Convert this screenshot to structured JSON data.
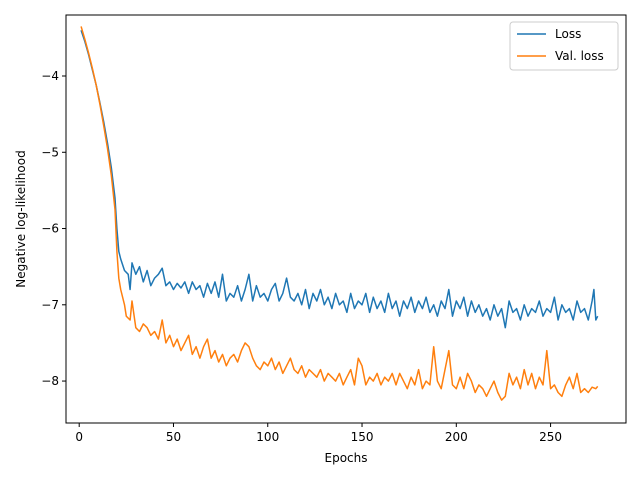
{
  "chart_data": {
    "type": "line",
    "title": "",
    "xlabel": "Epochs",
    "ylabel": "Negative log-likelihood",
    "xlim": [
      -7,
      290
    ],
    "ylim": [
      -8.55,
      -3.2
    ],
    "xticks": [
      0,
      50,
      100,
      150,
      200,
      250
    ],
    "yticks": [
      -4,
      -5,
      -6,
      -7,
      -8
    ],
    "grid": false,
    "legend_position": "top-right",
    "series": [
      {
        "name": "Loss",
        "color": "#1f77b4",
        "points": [
          [
            1,
            -3.4
          ],
          [
            3,
            -3.55
          ],
          [
            5,
            -3.72
          ],
          [
            7,
            -3.92
          ],
          [
            9,
            -4.12
          ],
          [
            11,
            -4.35
          ],
          [
            13,
            -4.6
          ],
          [
            15,
            -4.88
          ],
          [
            17,
            -5.2
          ],
          [
            19,
            -5.6
          ],
          [
            20,
            -6.0
          ],
          [
            21,
            -6.3
          ],
          [
            22,
            -6.4
          ],
          [
            24,
            -6.55
          ],
          [
            26,
            -6.6
          ],
          [
            27,
            -6.8
          ],
          [
            28,
            -6.45
          ],
          [
            30,
            -6.6
          ],
          [
            32,
            -6.5
          ],
          [
            34,
            -6.7
          ],
          [
            36,
            -6.55
          ],
          [
            38,
            -6.75
          ],
          [
            40,
            -6.65
          ],
          [
            42,
            -6.6
          ],
          [
            44,
            -6.52
          ],
          [
            46,
            -6.75
          ],
          [
            48,
            -6.7
          ],
          [
            50,
            -6.8
          ],
          [
            52,
            -6.72
          ],
          [
            54,
            -6.78
          ],
          [
            56,
            -6.7
          ],
          [
            58,
            -6.85
          ],
          [
            60,
            -6.7
          ],
          [
            62,
            -6.8
          ],
          [
            64,
            -6.75
          ],
          [
            66,
            -6.9
          ],
          [
            68,
            -6.72
          ],
          [
            70,
            -6.85
          ],
          [
            72,
            -6.7
          ],
          [
            74,
            -6.9
          ],
          [
            76,
            -6.6
          ],
          [
            78,
            -6.95
          ],
          [
            80,
            -6.85
          ],
          [
            82,
            -6.9
          ],
          [
            84,
            -6.75
          ],
          [
            86,
            -6.95
          ],
          [
            88,
            -6.8
          ],
          [
            90,
            -6.6
          ],
          [
            92,
            -6.95
          ],
          [
            94,
            -6.75
          ],
          [
            96,
            -6.9
          ],
          [
            98,
            -6.85
          ],
          [
            100,
            -6.95
          ],
          [
            102,
            -6.8
          ],
          [
            104,
            -6.72
          ],
          [
            106,
            -6.95
          ],
          [
            108,
            -6.85
          ],
          [
            110,
            -6.65
          ],
          [
            112,
            -6.9
          ],
          [
            114,
            -6.95
          ],
          [
            116,
            -6.85
          ],
          [
            118,
            -7.0
          ],
          [
            120,
            -6.8
          ],
          [
            122,
            -7.05
          ],
          [
            124,
            -6.85
          ],
          [
            126,
            -6.95
          ],
          [
            128,
            -6.8
          ],
          [
            130,
            -7.0
          ],
          [
            132,
            -6.9
          ],
          [
            134,
            -7.05
          ],
          [
            136,
            -6.85
          ],
          [
            138,
            -7.0
          ],
          [
            140,
            -6.95
          ],
          [
            142,
            -7.1
          ],
          [
            144,
            -6.85
          ],
          [
            146,
            -7.05
          ],
          [
            148,
            -6.95
          ],
          [
            150,
            -7.0
          ],
          [
            152,
            -6.85
          ],
          [
            154,
            -7.1
          ],
          [
            156,
            -6.9
          ],
          [
            158,
            -7.05
          ],
          [
            160,
            -6.95
          ],
          [
            162,
            -7.1
          ],
          [
            164,
            -6.85
          ],
          [
            166,
            -7.05
          ],
          [
            168,
            -6.95
          ],
          [
            170,
            -7.15
          ],
          [
            172,
            -6.95
          ],
          [
            174,
            -7.05
          ],
          [
            176,
            -6.9
          ],
          [
            178,
            -7.1
          ],
          [
            180,
            -6.95
          ],
          [
            182,
            -7.05
          ],
          [
            184,
            -6.9
          ],
          [
            186,
            -7.1
          ],
          [
            188,
            -7.0
          ],
          [
            190,
            -7.15
          ],
          [
            192,
            -6.95
          ],
          [
            194,
            -7.05
          ],
          [
            196,
            -6.8
          ],
          [
            198,
            -7.15
          ],
          [
            200,
            -6.95
          ],
          [
            202,
            -7.05
          ],
          [
            204,
            -6.9
          ],
          [
            206,
            -7.15
          ],
          [
            208,
            -6.95
          ],
          [
            210,
            -7.1
          ],
          [
            212,
            -7.0
          ],
          [
            214,
            -7.15
          ],
          [
            216,
            -7.05
          ],
          [
            218,
            -7.2
          ],
          [
            220,
            -7.0
          ],
          [
            222,
            -7.15
          ],
          [
            224,
            -7.05
          ],
          [
            226,
            -7.3
          ],
          [
            228,
            -6.95
          ],
          [
            230,
            -7.1
          ],
          [
            232,
            -7.05
          ],
          [
            234,
            -7.2
          ],
          [
            236,
            -7.0
          ],
          [
            238,
            -7.15
          ],
          [
            240,
            -7.05
          ],
          [
            242,
            -7.1
          ],
          [
            244,
            -6.95
          ],
          [
            246,
            -7.15
          ],
          [
            248,
            -7.05
          ],
          [
            250,
            -7.1
          ],
          [
            252,
            -6.9
          ],
          [
            254,
            -7.2
          ],
          [
            256,
            -7.0
          ],
          [
            258,
            -7.1
          ],
          [
            260,
            -7.05
          ],
          [
            262,
            -7.2
          ],
          [
            264,
            -6.95
          ],
          [
            266,
            -7.1
          ],
          [
            268,
            -7.05
          ],
          [
            270,
            -7.2
          ],
          [
            272,
            -6.95
          ],
          [
            273,
            -6.8
          ],
          [
            274,
            -7.2
          ],
          [
            275,
            -7.15
          ]
        ]
      },
      {
        "name": "Val. loss",
        "color": "#ff7f0e",
        "points": [
          [
            1,
            -3.35
          ],
          [
            3,
            -3.52
          ],
          [
            5,
            -3.7
          ],
          [
            7,
            -3.9
          ],
          [
            9,
            -4.12
          ],
          [
            11,
            -4.37
          ],
          [
            13,
            -4.65
          ],
          [
            15,
            -4.95
          ],
          [
            17,
            -5.3
          ],
          [
            19,
            -5.75
          ],
          [
            20,
            -6.3
          ],
          [
            21,
            -6.65
          ],
          [
            22,
            -6.8
          ],
          [
            24,
            -7.0
          ],
          [
            25,
            -7.15
          ],
          [
            27,
            -7.2
          ],
          [
            28,
            -6.95
          ],
          [
            30,
            -7.3
          ],
          [
            32,
            -7.35
          ],
          [
            34,
            -7.25
          ],
          [
            36,
            -7.3
          ],
          [
            38,
            -7.4
          ],
          [
            40,
            -7.35
          ],
          [
            42,
            -7.45
          ],
          [
            44,
            -7.2
          ],
          [
            46,
            -7.5
          ],
          [
            48,
            -7.4
          ],
          [
            50,
            -7.55
          ],
          [
            52,
            -7.45
          ],
          [
            54,
            -7.6
          ],
          [
            56,
            -7.5
          ],
          [
            58,
            -7.4
          ],
          [
            60,
            -7.65
          ],
          [
            62,
            -7.55
          ],
          [
            64,
            -7.7
          ],
          [
            66,
            -7.55
          ],
          [
            68,
            -7.45
          ],
          [
            70,
            -7.7
          ],
          [
            72,
            -7.6
          ],
          [
            74,
            -7.75
          ],
          [
            76,
            -7.65
          ],
          [
            78,
            -7.8
          ],
          [
            80,
            -7.7
          ],
          [
            82,
            -7.65
          ],
          [
            84,
            -7.75
          ],
          [
            86,
            -7.6
          ],
          [
            88,
            -7.5
          ],
          [
            90,
            -7.55
          ],
          [
            92,
            -7.7
          ],
          [
            94,
            -7.8
          ],
          [
            96,
            -7.85
          ],
          [
            98,
            -7.75
          ],
          [
            100,
            -7.8
          ],
          [
            102,
            -7.7
          ],
          [
            104,
            -7.85
          ],
          [
            106,
            -7.75
          ],
          [
            108,
            -7.9
          ],
          [
            110,
            -7.8
          ],
          [
            112,
            -7.7
          ],
          [
            114,
            -7.85
          ],
          [
            116,
            -7.9
          ],
          [
            118,
            -7.8
          ],
          [
            120,
            -7.95
          ],
          [
            122,
            -7.85
          ],
          [
            124,
            -7.9
          ],
          [
            126,
            -7.95
          ],
          [
            128,
            -7.85
          ],
          [
            130,
            -8.0
          ],
          [
            132,
            -7.9
          ],
          [
            134,
            -7.95
          ],
          [
            136,
            -8.0
          ],
          [
            138,
            -7.9
          ],
          [
            140,
            -8.05
          ],
          [
            142,
            -7.95
          ],
          [
            144,
            -7.85
          ],
          [
            146,
            -8.05
          ],
          [
            148,
            -7.7
          ],
          [
            150,
            -7.8
          ],
          [
            152,
            -8.05
          ],
          [
            154,
            -7.95
          ],
          [
            156,
            -8.0
          ],
          [
            158,
            -7.9
          ],
          [
            160,
            -8.05
          ],
          [
            162,
            -7.95
          ],
          [
            164,
            -8.0
          ],
          [
            166,
            -7.9
          ],
          [
            168,
            -8.05
          ],
          [
            170,
            -7.9
          ],
          [
            172,
            -8.0
          ],
          [
            174,
            -8.1
          ],
          [
            176,
            -7.95
          ],
          [
            178,
            -8.05
          ],
          [
            180,
            -7.85
          ],
          [
            182,
            -8.1
          ],
          [
            184,
            -8.0
          ],
          [
            186,
            -8.05
          ],
          [
            188,
            -7.55
          ],
          [
            190,
            -8.0
          ],
          [
            192,
            -8.1
          ],
          [
            194,
            -7.85
          ],
          [
            196,
            -7.6
          ],
          [
            198,
            -8.05
          ],
          [
            200,
            -8.1
          ],
          [
            202,
            -7.95
          ],
          [
            204,
            -8.1
          ],
          [
            206,
            -7.9
          ],
          [
            208,
            -8.0
          ],
          [
            210,
            -8.15
          ],
          [
            212,
            -8.05
          ],
          [
            214,
            -8.1
          ],
          [
            216,
            -8.2
          ],
          [
            218,
            -8.1
          ],
          [
            220,
            -8.0
          ],
          [
            222,
            -8.15
          ],
          [
            224,
            -8.25
          ],
          [
            226,
            -8.2
          ],
          [
            228,
            -7.9
          ],
          [
            230,
            -8.05
          ],
          [
            232,
            -7.95
          ],
          [
            234,
            -8.1
          ],
          [
            236,
            -7.85
          ],
          [
            238,
            -8.05
          ],
          [
            240,
            -7.9
          ],
          [
            242,
            -8.1
          ],
          [
            244,
            -7.95
          ],
          [
            246,
            -8.05
          ],
          [
            248,
            -7.6
          ],
          [
            250,
            -8.1
          ],
          [
            252,
            -8.05
          ],
          [
            254,
            -8.15
          ],
          [
            256,
            -8.2
          ],
          [
            258,
            -8.05
          ],
          [
            260,
            -7.95
          ],
          [
            262,
            -8.1
          ],
          [
            264,
            -7.9
          ],
          [
            266,
            -8.15
          ],
          [
            268,
            -8.1
          ],
          [
            270,
            -8.15
          ],
          [
            272,
            -8.08
          ],
          [
            274,
            -8.1
          ],
          [
            275,
            -8.07
          ]
        ]
      }
    ]
  }
}
